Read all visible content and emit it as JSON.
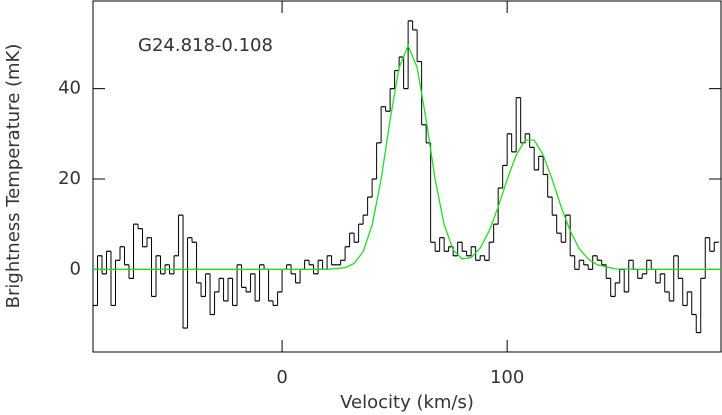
{
  "chart_data": {
    "type": "line",
    "annotation": "G24.818-0.108",
    "x_label": "Velocity (km/s)",
    "y_label": "Brightness Temperature (mK)",
    "xlim": [
      -84,
      195
    ],
    "ylim": [
      -18.3,
      59.4
    ],
    "xticks": [
      0,
      100
    ],
    "yticks": [
      0,
      20,
      40
    ],
    "series": [
      {
        "style": "step",
        "color": "#000000",
        "x": [
          -83,
          -81,
          -79,
          -77,
          -75,
          -73,
          -71,
          -69,
          -67,
          -65,
          -63,
          -61,
          -59,
          -57,
          -55,
          -53,
          -51,
          -49,
          -47,
          -45,
          -43,
          -41,
          -39,
          -37,
          -35,
          -33,
          -31,
          -29,
          -27,
          -25,
          -23,
          -21,
          -19,
          -17,
          -15,
          -13,
          -11,
          -9,
          -7,
          -5,
          -3,
          -1,
          1,
          3,
          5,
          7,
          9,
          11,
          13,
          15,
          17,
          19,
          21,
          23,
          25,
          27,
          29,
          31,
          33,
          35,
          37,
          39,
          41,
          43,
          45,
          47,
          49,
          51,
          53,
          55,
          57,
          59,
          61,
          63,
          65,
          67,
          69,
          71,
          73,
          75,
          77,
          79,
          81,
          83,
          85,
          87,
          89,
          91,
          93,
          95,
          97,
          99,
          101,
          103,
          105,
          107,
          109,
          111,
          113,
          115,
          117,
          119,
          121,
          123,
          125,
          127,
          129,
          131,
          133,
          135,
          137,
          139,
          141,
          143,
          145,
          147,
          149,
          151,
          153,
          155,
          157,
          159,
          161,
          163,
          165,
          167,
          169,
          171,
          173,
          175,
          177,
          179,
          181,
          183,
          185,
          187,
          189,
          191,
          193
        ],
        "values": [
          -8,
          3,
          -1,
          4,
          -8,
          2,
          5,
          1,
          -2,
          10,
          9,
          5,
          7,
          -6,
          3,
          -1,
          1,
          -1,
          3,
          12,
          -13,
          7,
          6,
          -3,
          -6,
          -1,
          -10,
          -5,
          -2,
          -7,
          -2,
          -8,
          1,
          -4,
          -5,
          -1,
          -7,
          1,
          0,
          -7,
          -8,
          -5,
          0,
          1,
          -1,
          -3,
          0,
          2,
          1,
          -1,
          2,
          0,
          3,
          1,
          1,
          2,
          5,
          8,
          6,
          10,
          12,
          16,
          20,
          28,
          36,
          35,
          40,
          44,
          47,
          40,
          55,
          53,
          46,
          32,
          28,
          6,
          4,
          7,
          4,
          5,
          3,
          6,
          4,
          3,
          5,
          2,
          3,
          2,
          6,
          10,
          18,
          23,
          30,
          26,
          38,
          28,
          30,
          27,
          22,
          25,
          21,
          16,
          12,
          8,
          6,
          12,
          3,
          0,
          2,
          1,
          0,
          3,
          2,
          1,
          -2,
          -6,
          -3,
          0,
          -5,
          2,
          0,
          -2,
          -1,
          2,
          0,
          -3,
          -1,
          -5,
          -7,
          3,
          -2,
          -8,
          -5,
          -10,
          -14,
          -2,
          7,
          4,
          6
        ]
      },
      {
        "style": "line",
        "color": "#22dd22",
        "x": [
          -84,
          20,
          28,
          32,
          36,
          40,
          44,
          48,
          52,
          56,
          60,
          64,
          68,
          72,
          76,
          80,
          84,
          88,
          92,
          96,
          100,
          104,
          108,
          112,
          116,
          120,
          124,
          128,
          132,
          136,
          140,
          148,
          160,
          195
        ],
        "values": [
          0,
          0,
          0.35,
          1.3,
          3.9,
          9.8,
          19.9,
          33.1,
          44.7,
          49.5,
          44.7,
          33.1,
          19.9,
          9.9,
          4.3,
          2.3,
          2.6,
          4.7,
          8.5,
          13.8,
          19.9,
          25.3,
          28.6,
          28.6,
          25.3,
          19.9,
          13.8,
          8.5,
          4.6,
          2.3,
          1,
          0.1,
          0,
          0
        ]
      }
    ]
  }
}
